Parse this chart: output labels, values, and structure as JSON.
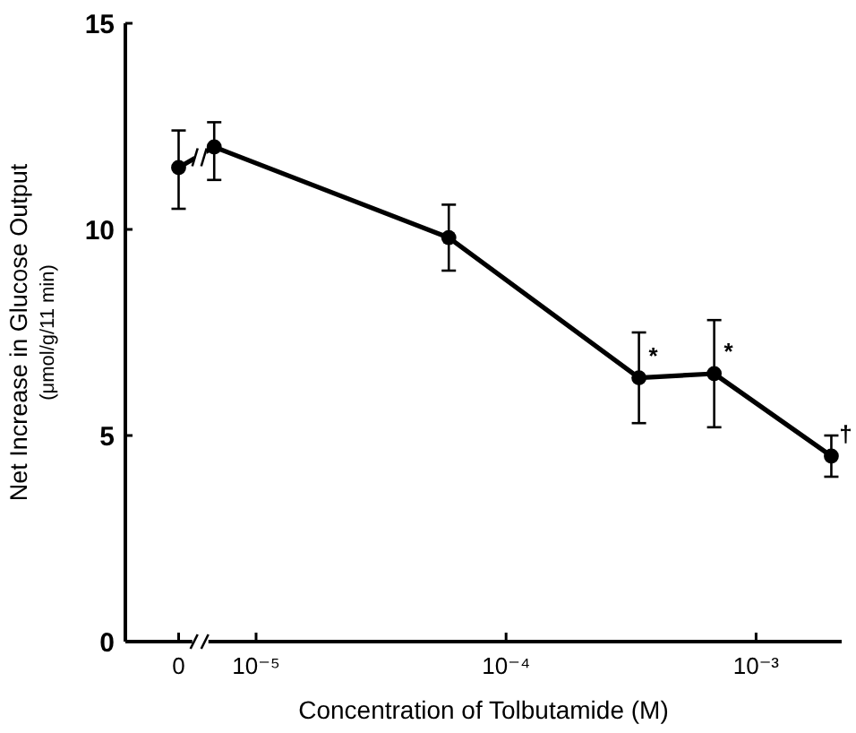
{
  "chart_data": {
    "type": "line",
    "xlabel": "Concentration of Tolbutamide (M)",
    "ylabel": "Net Increase in Glucose Output\n(μmol/g/11 min)",
    "log": "x",
    "xlim": [
      3e-06,
      0.0022
    ],
    "xticks": [
      {
        "value": 4.9e-06,
        "label": "0"
      },
      {
        "value": 1e-05,
        "label": "10⁻⁵"
      },
      {
        "value": 0.0001,
        "label": "10⁻⁴"
      },
      {
        "value": 0.001,
        "label": "10⁻³"
      }
    ],
    "ylim": [
      0,
      15
    ],
    "yticks": [
      0,
      5,
      10,
      15
    ],
    "grid": false,
    "marker": "circle",
    "line_style": "solid",
    "series": [
      {
        "color": "#000000",
        "x": [
          4.9e-06,
          6.8e-06,
          5.9e-05,
          0.00034,
          0.00068,
          0.002
        ],
        "values": [
          11.5,
          12.0,
          9.8,
          6.4,
          6.5,
          4.5
        ],
        "errors": [
          [
            10.5,
            12.4
          ],
          [
            11.2,
            12.6
          ],
          [
            9.0,
            10.6
          ],
          [
            5.3,
            7.5
          ],
          [
            5.2,
            7.8
          ],
          [
            4.0,
            5.0
          ]
        ]
      }
    ],
    "annotations": [
      {
        "text": "*",
        "x": 0.00034,
        "y": 6.4
      },
      {
        "text": "*",
        "x": 0.00068,
        "y": 6.5
      },
      {
        "text": "†",
        "x": 0.002,
        "y": 4.5
      }
    ]
  }
}
